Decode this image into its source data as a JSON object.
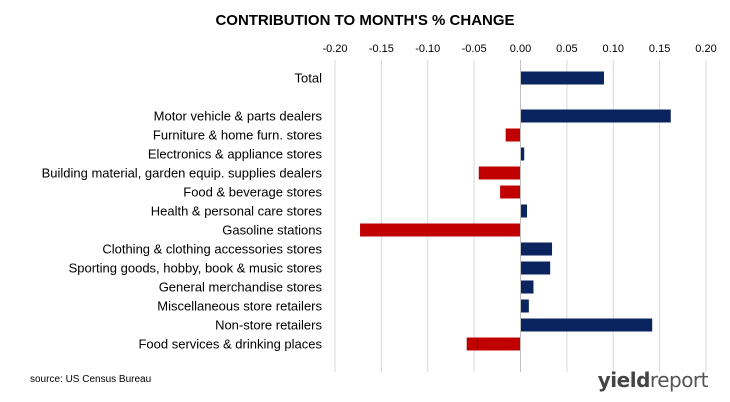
{
  "chart_data": {
    "type": "bar",
    "orientation": "horizontal",
    "title": "CONTRIBUTION TO MONTH'S % CHANGE",
    "xlim": [
      -0.2,
      0.2
    ],
    "ticks": [
      "-0.20",
      "-0.15",
      "-0.10",
      "-0.05",
      "0.00",
      "0.05",
      "0.10",
      "0.15",
      "0.20"
    ],
    "grid": true,
    "colors": {
      "positive": "#0a2460",
      "negative": "#c00000"
    },
    "categories": [
      "Total",
      "Motor vehicle & parts dealers",
      "Furniture & home furn. stores",
      "Electronics & appliance stores",
      "Building material, garden equip. supplies dealers",
      "Food & beverage stores",
      "Health & personal care stores",
      "Gasoline stations",
      "Clothing & clothing accessories stores",
      "Sporting goods, hobby, book & music stores",
      "General merchandise stores",
      "Miscellaneous store retailers",
      "Non-store retailers",
      "Food services & drinking places"
    ],
    "values": [
      0.09,
      0.162,
      -0.016,
      0.004,
      -0.045,
      -0.022,
      0.007,
      -0.173,
      0.034,
      0.032,
      0.014,
      0.009,
      0.142,
      -0.058
    ]
  },
  "source": "source: US Census Bureau",
  "brand": {
    "part1": "yield",
    "part2": "report"
  }
}
